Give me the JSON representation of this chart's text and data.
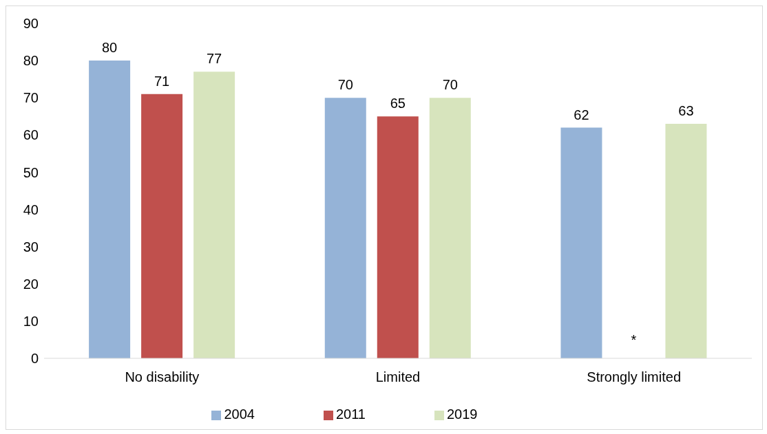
{
  "chart_data": {
    "type": "bar",
    "categories": [
      "No disability",
      "Limited",
      "Strongly limited"
    ],
    "series": [
      {
        "name": "2004",
        "color": "#95b3d7",
        "values": [
          80,
          70,
          62
        ],
        "value_labels": [
          "80",
          "70",
          "62"
        ]
      },
      {
        "name": "2011",
        "color": "#c0504d",
        "values": [
          71,
          65,
          null
        ],
        "value_labels": [
          "71",
          "65",
          "*"
        ]
      },
      {
        "name": "2019",
        "color": "#d7e4bd",
        "values": [
          77,
          70,
          63
        ],
        "value_labels": [
          "77",
          "70",
          "63"
        ]
      }
    ],
    "ylim": [
      0,
      90
    ],
    "yticks": [
      0,
      10,
      20,
      30,
      40,
      50,
      60,
      70,
      80,
      90
    ],
    "grid": false,
    "legend": "bottom"
  }
}
